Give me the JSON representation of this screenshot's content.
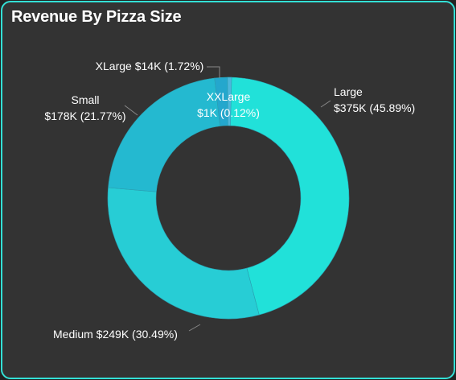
{
  "title": "Revenue By Pizza Size",
  "chart_data": {
    "type": "pie",
    "variant": "donut",
    "title": "Revenue By Pizza Size",
    "categories": [
      "Large",
      "Medium",
      "Small",
      "XLarge",
      "XXLarge"
    ],
    "values": [
      375,
      249,
      178,
      14,
      1
    ],
    "percentages": [
      45.89,
      30.49,
      21.77,
      1.72,
      0.12
    ],
    "value_labels": [
      "$375K",
      "$249K",
      "$178K",
      "$14K",
      "$1K"
    ],
    "percent_labels": [
      "(45.89%)",
      "(30.49%)",
      "(21.77%)",
      "(1.72%)",
      "(0.12%)"
    ],
    "unit": "USD thousands",
    "colors": [
      "#21e1d9",
      "#27cdd5",
      "#24b9d0",
      "#24a7cd",
      "#4db6dc"
    ]
  },
  "colors": {
    "background": "#333333",
    "border": "#33e0d6",
    "leader_line": "#888888"
  }
}
